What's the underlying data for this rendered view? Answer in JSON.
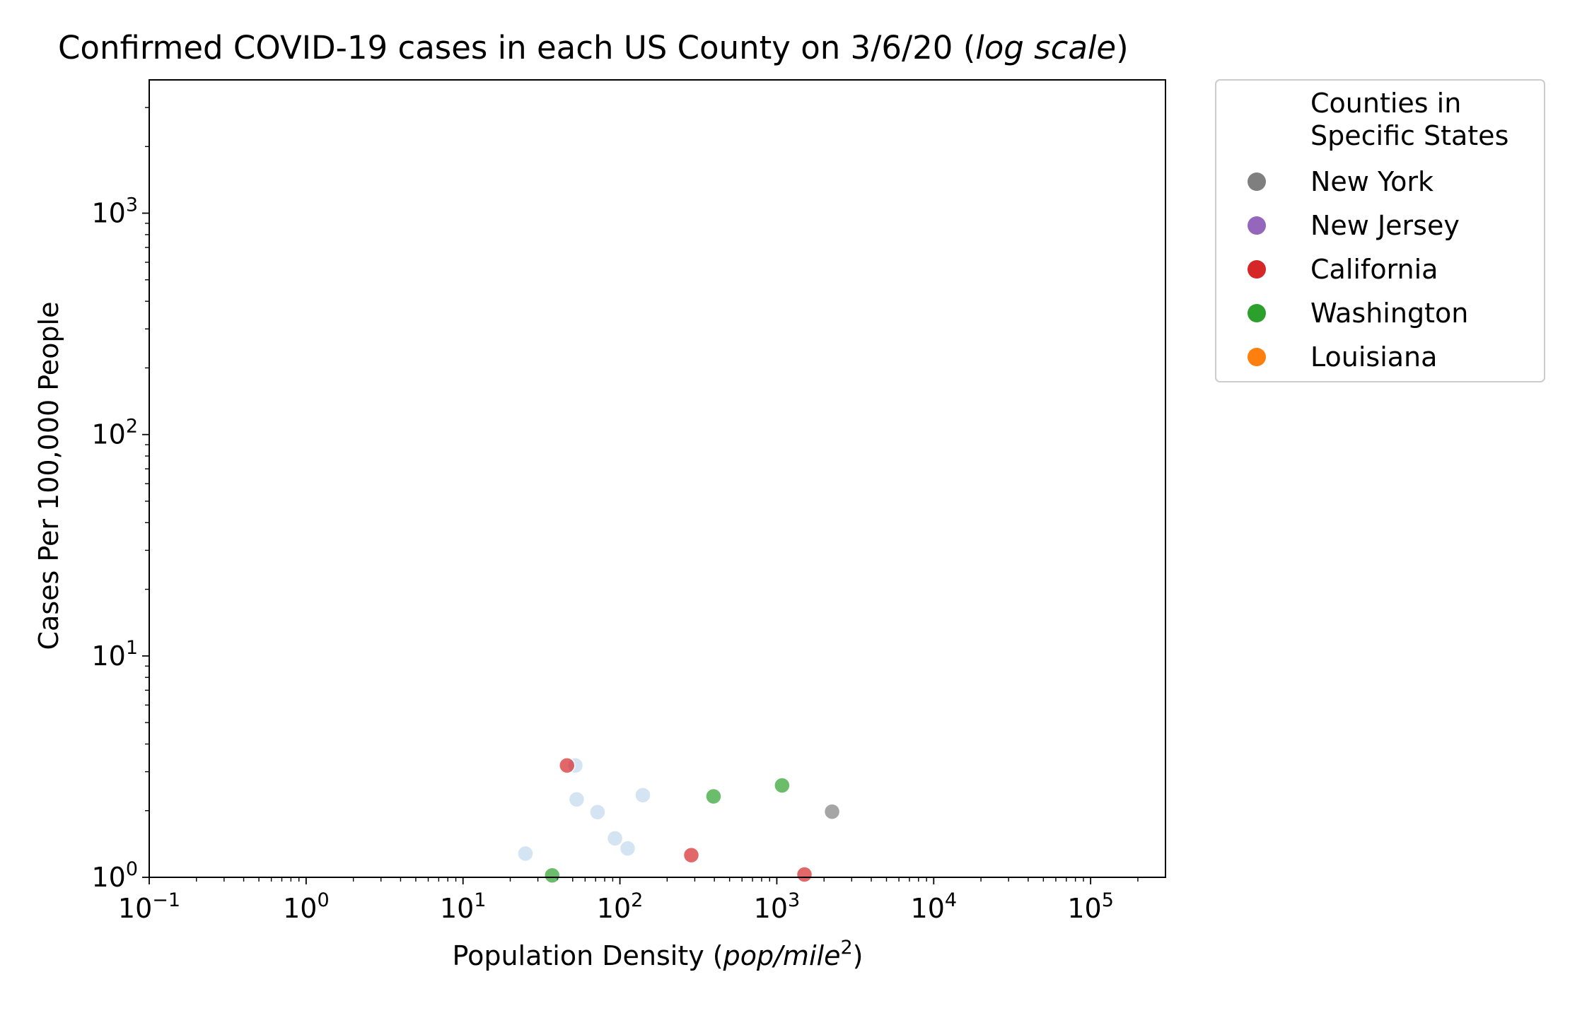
{
  "chart_data": {
    "type": "scatter",
    "title": {
      "prefix": "Confirmed COVID-19 cases in each US County on 3/6/20 (",
      "italic": "log scale",
      "suffix": ")"
    },
    "xlabel": {
      "prefix": "Population Density (",
      "italic": "pop/mile",
      "sup": "2",
      "suffix": ")"
    },
    "ylabel": "Cases Per 100,000 People",
    "x_scale": "log",
    "y_scale": "log",
    "xlim": [
      0.1,
      300000
    ],
    "ylim": [
      1,
      4000
    ],
    "x_ticks": [
      {
        "base": "10",
        "exp": "−1",
        "value": 0.1
      },
      {
        "base": "10",
        "exp": "0",
        "value": 1
      },
      {
        "base": "10",
        "exp": "1",
        "value": 10
      },
      {
        "base": "10",
        "exp": "2",
        "value": 100
      },
      {
        "base": "10",
        "exp": "3",
        "value": 1000
      },
      {
        "base": "10",
        "exp": "4",
        "value": 10000
      },
      {
        "base": "10",
        "exp": "5",
        "value": 100000
      }
    ],
    "y_ticks": [
      {
        "base": "10",
        "exp": "0",
        "value": 1
      },
      {
        "base": "10",
        "exp": "1",
        "value": 10
      },
      {
        "base": "10",
        "exp": "2",
        "value": 100
      },
      {
        "base": "10",
        "exp": "3",
        "value": 1000
      }
    ],
    "grid": false,
    "legend": {
      "placement": "outside-top-right",
      "title_lines": [
        "Counties in",
        "Specific States"
      ],
      "entries": [
        {
          "label": "New York",
          "color": "#7f7f7f"
        },
        {
          "label": "New Jersey",
          "color": "#9467bd"
        },
        {
          "label": "California",
          "color": "#d62728"
        },
        {
          "label": "Washington",
          "color": "#2ca02c"
        },
        {
          "label": "Louisiana",
          "color": "#ff7f0e"
        }
      ]
    },
    "series": [
      {
        "color": "#c6dbef",
        "points": [
          {
            "x": 52,
            "y": 3.2
          },
          {
            "x": 53,
            "y": 2.25
          },
          {
            "x": 72,
            "y": 1.97
          },
          {
            "x": 140,
            "y": 2.35
          },
          {
            "x": 93,
            "y": 1.5
          },
          {
            "x": 112,
            "y": 1.35
          },
          {
            "x": 25,
            "y": 1.28
          }
        ]
      },
      {
        "name": "New York",
        "color": "#7f7f7f",
        "points": [
          {
            "x": 2250,
            "y": 1.98
          }
        ]
      },
      {
        "name": "New Jersey",
        "color": "#9467bd",
        "points": []
      },
      {
        "name": "California",
        "color": "#d62728",
        "points": [
          {
            "x": 46,
            "y": 3.2
          },
          {
            "x": 285,
            "y": 1.26
          },
          {
            "x": 1500,
            "y": 1.03
          }
        ]
      },
      {
        "name": "Washington",
        "color": "#2ca02c",
        "points": [
          {
            "x": 37,
            "y": 1.02
          },
          {
            "x": 395,
            "y": 2.32
          },
          {
            "x": 1080,
            "y": 2.6
          }
        ]
      },
      {
        "name": "Louisiana",
        "color": "#ff7f0e",
        "points": []
      }
    ]
  }
}
